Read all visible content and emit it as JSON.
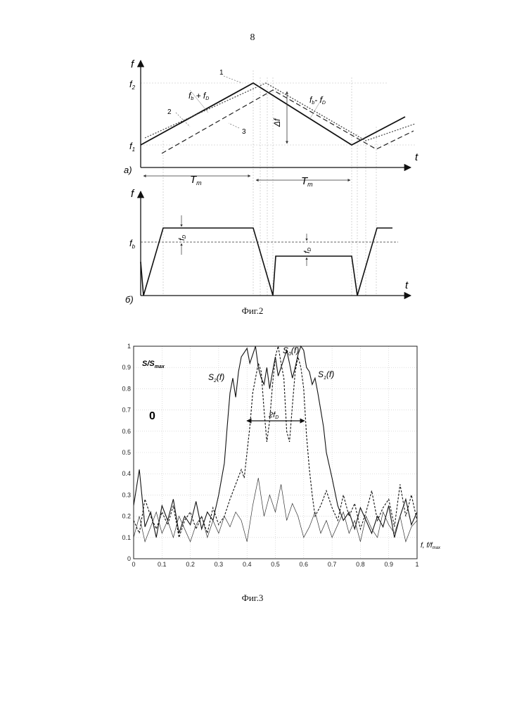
{
  "page": {
    "number": "8"
  },
  "fig2": {
    "caption": "Фиг.2",
    "panel_a": {
      "label": "а)",
      "y_axis": "f",
      "x_axis": "t",
      "f2": "f",
      "f2_sub": "2",
      "f1": "f",
      "f1_sub": "1",
      "curve_labels": [
        "1",
        "2",
        "3"
      ],
      "sum_label": "f",
      "sum_label_sub": "b",
      "sum_label_mid": " + f",
      "sum_label_sub2": "D",
      "diff_label": "f",
      "diff_label_sub": "b",
      "diff_label_mid": "- f",
      "diff_label_sub2": "D",
      "delta_f": "Δf",
      "period": "T",
      "period_sub": "m"
    },
    "panel_b": {
      "label": "б)",
      "y_axis": "f",
      "x_axis": "t",
      "fb": "f",
      "fb_sub": "b",
      "fd_upper": "f",
      "fd_upper_sub": "D",
      "fd_lower": "f",
      "fd_lower_sub": "D"
    }
  },
  "fig3": {
    "caption": "Фиг.3",
    "y_label": "S/S",
    "y_label_sub": "max",
    "x_label": "f, f/f",
    "x_label_sub": "max",
    "s0": "S",
    "s0_sub": "0",
    "s0_tail": "(f)",
    "s1": "S",
    "s1_sub": "1",
    "s1_tail": "(f)",
    "s2": "S",
    "s2_sub": "2",
    "s2_tail": "(f)",
    "zero_label": "0",
    "width_label": "2f",
    "width_label_sub": "D"
  },
  "chart_data": {
    "type": "line",
    "x_ticks": [
      "0",
      "0.1",
      "0.2",
      "0.3",
      "0.4",
      "0.5",
      "0.6",
      "0.7",
      "0.8",
      "0.9",
      "1"
    ],
    "y_ticks": [
      "0",
      "0.1",
      "0.2",
      "0.3",
      "0.4",
      "0.5",
      "0.6",
      "0.7",
      "0.8",
      "0.9",
      "1"
    ],
    "xlim": [
      0,
      1
    ],
    "ylim": [
      0,
      1
    ],
    "grid": true,
    "series": [
      {
        "name": "S1(f)",
        "style": "solid",
        "x": [
          0,
          0.02,
          0.04,
          0.06,
          0.08,
          0.1,
          0.12,
          0.14,
          0.16,
          0.18,
          0.2,
          0.22,
          0.24,
          0.26,
          0.28,
          0.3,
          0.32,
          0.33,
          0.34,
          0.35,
          0.36,
          0.37,
          0.38,
          0.39,
          0.4,
          0.41,
          0.42,
          0.43,
          0.44,
          0.45,
          0.46,
          0.47,
          0.48,
          0.49,
          0.5,
          0.51,
          0.52,
          0.53,
          0.54,
          0.55,
          0.56,
          0.57,
          0.58,
          0.59,
          0.6,
          0.61,
          0.62,
          0.63,
          0.64,
          0.65,
          0.66,
          0.67,
          0.68,
          0.7,
          0.72,
          0.74,
          0.76,
          0.78,
          0.8,
          0.82,
          0.84,
          0.86,
          0.88,
          0.9,
          0.92,
          0.94,
          0.96,
          0.98,
          1.0
        ],
        "y": [
          0.25,
          0.42,
          0.15,
          0.22,
          0.1,
          0.25,
          0.18,
          0.28,
          0.12,
          0.2,
          0.16,
          0.27,
          0.14,
          0.22,
          0.18,
          0.3,
          0.45,
          0.62,
          0.78,
          0.85,
          0.76,
          0.88,
          0.95,
          0.97,
          0.99,
          0.92,
          0.96,
          1.0,
          0.9,
          0.85,
          0.82,
          0.9,
          0.8,
          0.88,
          0.95,
          0.86,
          0.9,
          0.94,
          0.98,
          0.92,
          0.85,
          0.9,
          0.96,
          1.0,
          0.98,
          0.9,
          0.88,
          0.82,
          0.85,
          0.78,
          0.7,
          0.62,
          0.5,
          0.38,
          0.25,
          0.18,
          0.22,
          0.14,
          0.24,
          0.18,
          0.12,
          0.2,
          0.15,
          0.25,
          0.1,
          0.2,
          0.28,
          0.16,
          0.22
        ]
      },
      {
        "name": "S0(f)",
        "style": "dashed",
        "x": [
          0,
          0.02,
          0.04,
          0.06,
          0.08,
          0.1,
          0.12,
          0.14,
          0.16,
          0.18,
          0.2,
          0.22,
          0.24,
          0.26,
          0.28,
          0.3,
          0.32,
          0.34,
          0.36,
          0.38,
          0.39,
          0.4,
          0.41,
          0.42,
          0.43,
          0.44,
          0.45,
          0.46,
          0.47,
          0.48,
          0.49,
          0.5,
          0.51,
          0.52,
          0.53,
          0.54,
          0.55,
          0.56,
          0.57,
          0.58,
          0.59,
          0.6,
          0.61,
          0.62,
          0.63,
          0.64,
          0.66,
          0.68,
          0.7,
          0.72,
          0.74,
          0.76,
          0.78,
          0.8,
          0.82,
          0.84,
          0.86,
          0.88,
          0.9,
          0.92,
          0.94,
          0.96,
          0.98,
          1.0
        ],
        "y": [
          0.18,
          0.12,
          0.28,
          0.2,
          0.14,
          0.22,
          0.16,
          0.25,
          0.1,
          0.18,
          0.22,
          0.14,
          0.2,
          0.12,
          0.24,
          0.16,
          0.2,
          0.28,
          0.35,
          0.42,
          0.38,
          0.5,
          0.62,
          0.78,
          0.85,
          0.92,
          0.88,
          0.7,
          0.55,
          0.65,
          0.82,
          0.95,
          1.0,
          0.92,
          0.85,
          0.6,
          0.55,
          0.72,
          0.88,
          0.95,
          0.9,
          0.8,
          0.58,
          0.42,
          0.3,
          0.2,
          0.25,
          0.32,
          0.24,
          0.18,
          0.3,
          0.2,
          0.26,
          0.14,
          0.22,
          0.32,
          0.18,
          0.24,
          0.28,
          0.15,
          0.35,
          0.2,
          0.3,
          0.18
        ]
      },
      {
        "name": "S2(f)",
        "style": "solid-thin",
        "x": [
          0,
          0.02,
          0.04,
          0.06,
          0.08,
          0.1,
          0.12,
          0.14,
          0.16,
          0.18,
          0.2,
          0.22,
          0.24,
          0.26,
          0.28,
          0.3,
          0.32,
          0.34,
          0.36,
          0.38,
          0.4,
          0.42,
          0.44,
          0.46,
          0.48,
          0.5,
          0.52,
          0.54,
          0.56,
          0.58,
          0.6,
          0.62,
          0.64,
          0.66,
          0.68,
          0.7,
          0.72,
          0.74,
          0.76,
          0.78,
          0.8,
          0.82,
          0.84,
          0.86,
          0.88,
          0.9,
          0.92,
          0.94,
          0.96,
          0.98,
          1.0
        ],
        "y": [
          0.1,
          0.2,
          0.08,
          0.15,
          0.22,
          0.12,
          0.18,
          0.1,
          0.2,
          0.14,
          0.08,
          0.16,
          0.2,
          0.1,
          0.18,
          0.12,
          0.2,
          0.15,
          0.22,
          0.18,
          0.08,
          0.25,
          0.38,
          0.2,
          0.3,
          0.22,
          0.35,
          0.18,
          0.26,
          0.2,
          0.1,
          0.15,
          0.22,
          0.12,
          0.18,
          0.1,
          0.16,
          0.22,
          0.12,
          0.18,
          0.08,
          0.2,
          0.14,
          0.1,
          0.22,
          0.16,
          0.12,
          0.2,
          0.08,
          0.15,
          0.18
        ]
      }
    ]
  }
}
